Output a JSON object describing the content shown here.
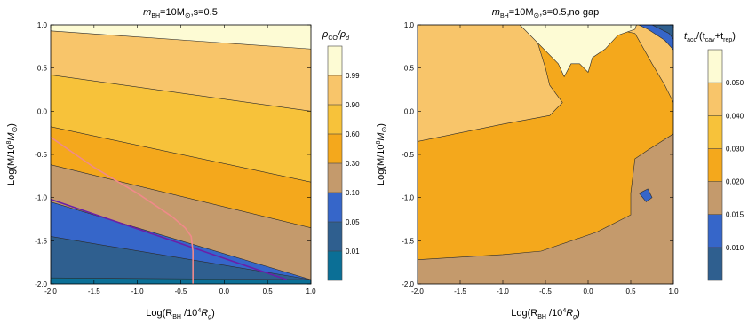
{
  "colors": {
    "b0": "#0b6f96",
    "b1": "#2f5f8f",
    "b2": "#3666c9",
    "b3": "#c49a6c",
    "b4": "#f4a81c",
    "b5": "#f7c23a",
    "b6": "#f8c56a",
    "b7": "#fdfbd4",
    "pink": "#f08a8a",
    "purple": "#6a1fa8"
  },
  "chart_data": [
    {
      "type": "contour",
      "title_main": "m",
      "title_sub": "BH",
      "title_rest": "=10M",
      "title_sun": "⊙",
      "title_tail": ",s=0.5",
      "xlabel_pre": "Log(R",
      "xlabel_sub1": "BH",
      "xlabel_mid": " /10",
      "xlabel_sup": "4",
      "xlabel_r": "R",
      "xlabel_sub2": "g",
      "xlabel_end": ")",
      "ylabel_pre": "Log(M/10",
      "ylabel_sup": "8",
      "ylabel_m": "M",
      "ylabel_sun": "⊙",
      "ylabel_end": ")",
      "xlim": [
        -2.0,
        1.0
      ],
      "ylim": [
        -2.0,
        1.0
      ],
      "xticks": [
        "-2.0",
        "-1.5",
        "-1.0",
        "-0.5",
        "0.0",
        "0.5",
        "1.0"
      ],
      "yticks": [
        "-2.0",
        "-1.5",
        "-1.0",
        "-0.5",
        "0.0",
        "0.5",
        "1.0"
      ],
      "colorbar_label_pre": "ρ",
      "colorbar_label_sub": "CO",
      "colorbar_label_mid": "/ρ",
      "colorbar_label_sub2": "d",
      "colorbar_levels": [
        0.01,
        0.05,
        0.1,
        0.3,
        0.6,
        0.9,
        0.99
      ],
      "colorbar_ticks": [
        "0.01",
        "0.05",
        "0.10",
        "0.30",
        "0.60",
        "0.90",
        "0.99"
      ],
      "contour_lines_y_at_xmin": [
        -1.93,
        -1.45,
        -1.05,
        -0.62,
        -0.18,
        0.42,
        0.93
      ],
      "contour_lines_y_at_xmax": [
        -1.95,
        -1.95,
        -1.95,
        -1.35,
        -0.82,
        0.0,
        0.72
      ],
      "pink_curve": [
        [
          -2.0,
          -0.3
        ],
        [
          -1.5,
          -0.65
        ],
        [
          -1.0,
          -0.95
        ],
        [
          -0.6,
          -1.22
        ],
        [
          -0.45,
          -1.35
        ],
        [
          -0.38,
          -1.45
        ],
        [
          -0.36,
          -1.62
        ],
        [
          -0.36,
          -2.0
        ]
      ],
      "purple_line": [
        [
          -2.0,
          -1.02
        ],
        [
          0.72,
          -1.95
        ]
      ]
    },
    {
      "type": "contour",
      "title_main": "m",
      "title_sub": "BH",
      "title_rest": "=10M",
      "title_sun": "⊙",
      "title_tail": ",s=0.5,no gap",
      "xlabel_pre": "Log(R",
      "xlabel_sub1": "BH",
      "xlabel_mid": " /10",
      "xlabel_sup": "4",
      "xlabel_r": "R",
      "xlabel_sub2": "g",
      "xlabel_end": ")",
      "ylabel_pre": "Log(M/10",
      "ylabel_sup": "8",
      "ylabel_m": "M",
      "ylabel_sun": "⊙",
      "ylabel_end": ")",
      "xlim": [
        -2.0,
        1.0
      ],
      "ylim": [
        -2.0,
        1.0
      ],
      "xticks": [
        "-2.0",
        "-1.5",
        "-1.0",
        "-0.5",
        "0.0",
        "0.5",
        "1.0"
      ],
      "yticks": [
        "-2.0",
        "-1.5",
        "-1.0",
        "-0.5",
        "0.0",
        "0.5",
        "1.0"
      ],
      "colorbar_label_pre": "t",
      "colorbar_label_sub": "acc",
      "colorbar_label_mid": "/(t",
      "colorbar_label_sub2": "cav",
      "colorbar_label_mid2": "+t",
      "colorbar_label_sub3": "rep",
      "colorbar_label_end": ")",
      "colorbar_levels": [
        0.01,
        0.015,
        0.02,
        0.03,
        0.04,
        0.05
      ],
      "colorbar_ticks": [
        "0.010",
        "0.015",
        "0.020",
        "0.030",
        "0.040",
        "0.050"
      ]
    }
  ]
}
